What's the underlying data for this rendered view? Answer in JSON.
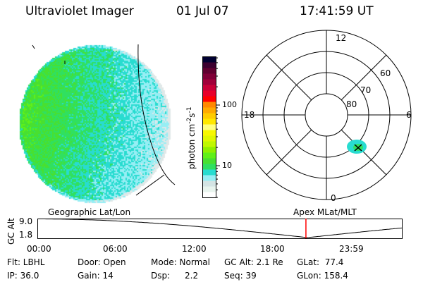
{
  "header": {
    "instrument": "Ultraviolet Imager",
    "date": "01 Jul 07",
    "time": "17:41:59 UT"
  },
  "colorbar": {
    "label": "photon cm^-2 s^-1",
    "label_parts": {
      "base": "photon cm",
      "exp1": "-2",
      "mid": "s",
      "exp2": "-1"
    },
    "tick_labels": [
      "10",
      "100"
    ],
    "colors": [
      "#ffffff",
      "#e8f4ee",
      "#d4e4e4",
      "#96eef4",
      "#28dcd0",
      "#30e060",
      "#48e030",
      "#60f018",
      "#90f000",
      "#c0f800",
      "#e0f800",
      "#f8f800",
      "#ffff80",
      "#ffe800",
      "#ffcc00",
      "#ffaa00",
      "#ff8800",
      "#ff0000",
      "#e8002a",
      "#c80038",
      "#a0003a",
      "#800038",
      "#600030",
      "#3c0030",
      "#000030"
    ]
  },
  "polar": {
    "hour_labels": [
      "12",
      "18",
      "6",
      "0"
    ],
    "lat_labels": [
      "60",
      "70",
      "80"
    ]
  },
  "altitude_plot": {
    "left_title": "Geographic Lat/Lon",
    "right_title": "Apex MLat/MLT",
    "ylabel": "GC Alt",
    "ytick_labels": [
      "9.0",
      "1.8"
    ],
    "xtick_labels": [
      "00:00",
      "06:00",
      "12:00",
      "18:00",
      "23:59"
    ],
    "current_time_marker": "17:41",
    "marker_color": "#ff0000"
  },
  "status": {
    "filter": "Flt: LBHL",
    "ip": "IP: 36.0",
    "door": "Door: Open",
    "gain": "Gain: 14",
    "mode": "Mode: Normal",
    "dsp_label": "Dsp:",
    "dsp_value": "2.2",
    "gc_alt": "GC Alt: 2.1 Re",
    "seq": "Seq: 39",
    "glat": "GLat:  77.4",
    "glon": "GLon: 158.4"
  }
}
